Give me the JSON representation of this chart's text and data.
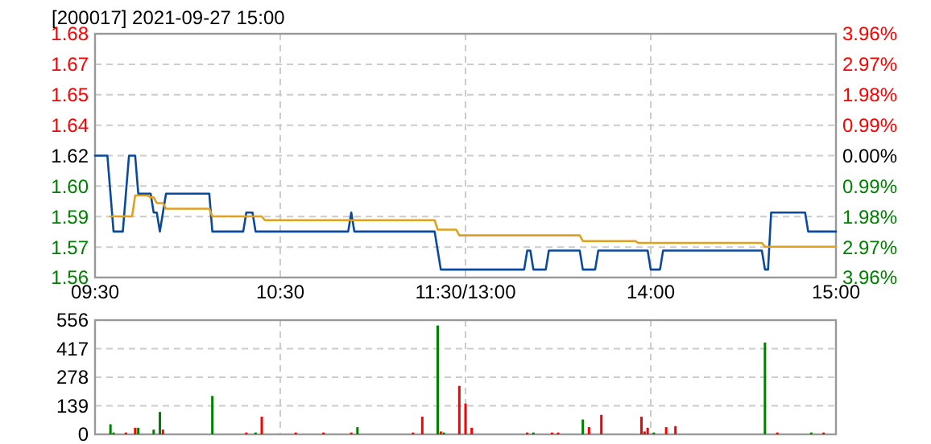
{
  "chart_data": [
    {
      "type": "line",
      "title": "[200017] 2021-09-27 15:00",
      "categories": [
        "09:30",
        null,
        null,
        null,
        null,
        null,
        null,
        null,
        null,
        null,
        null,
        null,
        null,
        null,
        null,
        null,
        null,
        null,
        null,
        null,
        null,
        null,
        null,
        null,
        null,
        null,
        null,
        null,
        null,
        null,
        null,
        null,
        null,
        null,
        null,
        null,
        null,
        null,
        null,
        null,
        null,
        null,
        null,
        null,
        null,
        null,
        null,
        null,
        null,
        null,
        null,
        null,
        null,
        null,
        null,
        null,
        null,
        null,
        null,
        null,
        "10:30",
        null,
        null,
        null,
        null,
        null,
        null,
        null,
        null,
        null,
        null,
        null,
        null,
        null,
        null,
        null,
        null,
        null,
        null,
        null,
        null,
        null,
        null,
        null,
        null,
        null,
        null,
        null,
        null,
        null,
        null,
        null,
        null,
        null,
        null,
        null,
        null,
        null,
        null,
        null,
        null,
        null,
        null,
        null,
        null,
        null,
        null,
        null,
        null,
        null,
        null,
        null,
        null,
        null,
        null,
        null,
        null,
        null,
        null,
        null,
        "11:30/13:00",
        null,
        null,
        null,
        null,
        null,
        null,
        null,
        null,
        null,
        null,
        null,
        null,
        null,
        null,
        null,
        null,
        null,
        null,
        null,
        null,
        null,
        null,
        null,
        null,
        null,
        null,
        null,
        null,
        null,
        null,
        null,
        null,
        null,
        null,
        null,
        null,
        null,
        null,
        null,
        null,
        null,
        null,
        null,
        null,
        null,
        null,
        null,
        null,
        null,
        null,
        null,
        null,
        null,
        null,
        null,
        null,
        null,
        null,
        null,
        "14:00",
        null,
        null,
        null,
        null,
        null,
        null,
        null,
        null,
        null,
        null,
        null,
        null,
        null,
        null,
        null,
        null,
        null,
        null,
        null,
        null,
        null,
        null,
        null,
        null,
        null,
        null,
        null,
        null,
        null,
        null,
        null,
        null,
        null,
        null,
        null,
        null,
        null,
        null,
        null,
        null,
        null,
        null,
        null,
        null,
        null,
        null,
        null,
        null,
        null,
        null,
        null,
        null,
        null,
        null,
        null,
        null,
        null,
        null,
        null,
        "15:00"
      ],
      "ylim": [
        1.5558,
        1.6842
      ],
      "yticks": [
        {
          "value": 1.5558,
          "label": "1.56"
        },
        {
          "value": 1.5718,
          "label": "1.57"
        },
        {
          "value": 1.5879,
          "label": "1.59"
        },
        {
          "value": 1.604,
          "label": "1.60"
        },
        {
          "value": 1.62,
          "label": "1.62"
        },
        {
          "value": 1.636,
          "label": "1.64"
        },
        {
          "value": 1.6521,
          "label": "1.65"
        },
        {
          "value": 1.6681,
          "label": "1.67"
        },
        {
          "value": 1.6842,
          "label": "1.68"
        }
      ],
      "y2lim": [
        -3.96,
        3.96
      ],
      "y2ticks": [
        {
          "value": -3.96,
          "label": "3.96%"
        },
        {
          "value": -2.97,
          "label": "2.97%"
        },
        {
          "value": -1.98,
          "label": "1.98%"
        },
        {
          "value": -0.99,
          "label": "0.99%"
        },
        {
          "value": 0,
          "label": "0.00%"
        },
        {
          "value": 0.99,
          "label": "0.99%"
        },
        {
          "value": 1.98,
          "label": "1.98%"
        },
        {
          "value": 2.97,
          "label": "2.97%"
        },
        {
          "value": 3.96,
          "label": "3.96%"
        }
      ],
      "grid": true,
      "series": [
        {
          "color": "#0a4a9e",
          "values": [
            1.62,
            1.62,
            1.62,
            1.62,
            1.62,
            1.6,
            1.58,
            1.58,
            1.58,
            1.58,
            1.6,
            1.62,
            1.62,
            1.62,
            1.6,
            1.6,
            1.6,
            1.6,
            1.6,
            1.59,
            1.59,
            1.58,
            1.59,
            1.6,
            1.6,
            1.6,
            1.6,
            1.6,
            1.6,
            1.6,
            1.6,
            1.6,
            1.6,
            1.6,
            1.6,
            1.6,
            1.6,
            1.6,
            1.58,
            1.58,
            1.58,
            1.58,
            1.58,
            1.58,
            1.58,
            1.58,
            1.58,
            1.58,
            1.58,
            1.59,
            1.59,
            1.59,
            1.58,
            1.58,
            1.58,
            1.58,
            1.58,
            1.58,
            1.58,
            1.58,
            1.58,
            1.58,
            1.58,
            1.58,
            1.58,
            1.58,
            1.58,
            1.58,
            1.58,
            1.58,
            1.58,
            1.58,
            1.58,
            1.58,
            1.58,
            1.58,
            1.58,
            1.58,
            1.58,
            1.58,
            1.58,
            1.58,
            1.58,
            1.59,
            1.58,
            1.58,
            1.58,
            1.58,
            1.58,
            1.58,
            1.58,
            1.58,
            1.58,
            1.58,
            1.58,
            1.58,
            1.58,
            1.58,
            1.58,
            1.58,
            1.58,
            1.58,
            1.58,
            1.58,
            1.58,
            1.58,
            1.58,
            1.58,
            1.58,
            1.58,
            1.58,
            1.57,
            1.56,
            1.56,
            1.56,
            1.56,
            1.56,
            1.56,
            1.56,
            1.56,
            1.56,
            1.56,
            1.56,
            1.56,
            1.56,
            1.56,
            1.56,
            1.56,
            1.56,
            1.56,
            1.56,
            1.56,
            1.56,
            1.56,
            1.56,
            1.56,
            1.56,
            1.56,
            1.56,
            1.56,
            1.57,
            1.57,
            1.56,
            1.56,
            1.56,
            1.56,
            1.56,
            1.57,
            1.57,
            1.57,
            1.57,
            1.57,
            1.57,
            1.57,
            1.57,
            1.57,
            1.57,
            1.57,
            1.56,
            1.56,
            1.56,
            1.56,
            1.56,
            1.57,
            1.57,
            1.57,
            1.57,
            1.57,
            1.57,
            1.57,
            1.57,
            1.57,
            1.57,
            1.57,
            1.57,
            1.57,
            1.57,
            1.57,
            1.57,
            1.57,
            1.56,
            1.56,
            1.56,
            1.56,
            1.57,
            1.57,
            1.57,
            1.57,
            1.57,
            1.57,
            1.57,
            1.57,
            1.57,
            1.57,
            1.57,
            1.57,
            1.57,
            1.57,
            1.57,
            1.57,
            1.57,
            1.57,
            1.57,
            1.57,
            1.57,
            1.57,
            1.57,
            1.57,
            1.57,
            1.57,
            1.57,
            1.57,
            1.57,
            1.57,
            1.57,
            1.57,
            1.57,
            1.56,
            1.56,
            1.59,
            1.59,
            1.59,
            1.59,
            1.59,
            1.59,
            1.59,
            1.59,
            1.59,
            1.59,
            1.59,
            1.59,
            1.58,
            1.58,
            1.58,
            1.58,
            1.58,
            1.58,
            1.58,
            1.58,
            1.58,
            1.58
          ]
        },
        {
          "color": "#e0a020",
          "values": [
            null,
            null,
            null,
            null,
            null,
            1.588,
            1.588,
            1.588,
            1.588,
            1.588,
            1.588,
            1.588,
            1.588,
            1.599,
            1.599,
            1.599,
            1.599,
            1.599,
            1.598,
            1.598,
            1.595,
            1.595,
            1.595,
            1.592,
            1.592,
            1.592,
            1.592,
            1.592,
            1.592,
            1.592,
            1.592,
            1.592,
            1.592,
            1.592,
            1.592,
            1.592,
            1.592,
            1.592,
            1.588,
            1.588,
            1.588,
            1.588,
            1.588,
            1.588,
            1.588,
            1.588,
            1.588,
            1.588,
            1.588,
            1.588,
            1.588,
            1.588,
            1.588,
            1.588,
            1.588,
            1.586,
            1.586,
            1.586,
            1.586,
            1.586,
            1.586,
            1.586,
            1.586,
            1.586,
            1.586,
            1.586,
            1.586,
            1.586,
            1.586,
            1.586,
            1.586,
            1.586,
            1.586,
            1.586,
            1.586,
            1.586,
            1.586,
            1.586,
            1.586,
            1.586,
            1.586,
            1.586,
            1.586,
            1.586,
            1.586,
            1.586,
            1.586,
            1.586,
            1.586,
            1.586,
            1.586,
            1.586,
            1.586,
            1.586,
            1.586,
            1.586,
            1.586,
            1.586,
            1.586,
            1.586,
            1.586,
            1.586,
            1.586,
            1.586,
            1.586,
            1.586,
            1.586,
            1.586,
            1.586,
            1.586,
            1.586,
            1.581,
            1.581,
            1.581,
            1.581,
            1.581,
            1.581,
            1.581,
            1.578,
            1.578,
            1.578,
            1.578,
            1.578,
            1.578,
            1.578,
            1.578,
            1.578,
            1.578,
            1.578,
            1.578,
            1.578,
            1.578,
            1.578,
            1.578,
            1.578,
            1.578,
            1.578,
            1.578,
            1.578,
            1.578,
            1.578,
            1.578,
            1.578,
            1.578,
            1.578,
            1.578,
            1.578,
            1.578,
            1.578,
            1.578,
            1.578,
            1.578,
            1.578,
            1.578,
            1.578,
            1.578,
            1.578,
            1.578,
            1.575,
            1.575,
            1.575,
            1.575,
            1.575,
            1.575,
            1.575,
            1.575,
            1.575,
            1.575,
            1.575,
            1.575,
            1.575,
            1.575,
            1.575,
            1.575,
            1.575,
            1.575,
            1.574,
            1.574,
            1.574,
            1.574,
            1.574,
            1.574,
            1.574,
            1.574,
            1.574,
            1.574,
            1.574,
            1.574,
            1.574,
            1.574,
            1.574,
            1.574,
            1.574,
            1.574,
            1.574,
            1.574,
            1.574,
            1.574,
            1.574,
            1.574,
            1.574,
            1.574,
            1.574,
            1.574,
            1.574,
            1.574,
            1.574,
            1.574,
            1.574,
            1.574,
            1.574,
            1.574,
            1.574,
            1.574,
            1.574,
            1.574,
            1.574,
            1.572,
            1.572,
            1.572,
            1.572,
            1.572,
            1.572,
            1.572,
            1.572,
            1.572,
            1.572,
            1.572,
            1.572,
            1.572,
            1.572,
            1.572,
            1.572,
            1.572,
            1.572,
            1.572,
            1.572,
            1.572,
            1.572,
            1.572,
            1.572
          ]
        }
      ]
    },
    {
      "type": "bar",
      "categories": [
        null,
        null,
        null,
        null,
        null,
        null,
        null,
        null,
        null,
        null,
        null,
        null,
        null,
        null,
        null,
        null,
        null,
        null,
        null,
        null,
        null,
        null,
        null,
        null,
        null,
        null,
        null,
        null,
        null,
        null,
        null,
        null,
        null,
        null,
        null,
        null,
        null,
        null,
        null,
        null,
        null,
        null,
        null,
        null,
        null,
        null,
        null,
        null,
        null,
        null,
        null,
        null,
        null,
        null,
        null,
        null,
        null,
        null,
        null,
        null,
        null,
        null,
        null,
        null,
        null,
        null,
        null,
        null,
        null,
        null,
        null,
        null,
        null,
        null,
        null,
        null,
        null,
        null,
        null,
        null,
        null,
        null,
        null,
        null,
        null,
        null,
        null,
        null,
        null,
        null,
        null,
        null,
        null,
        null,
        null,
        null,
        null,
        null,
        null,
        null,
        null,
        null,
        null,
        null,
        null,
        null,
        null,
        null,
        null,
        null,
        null,
        null,
        null,
        null,
        null,
        null,
        null,
        null,
        null,
        null,
        null,
        null,
        null,
        null,
        null,
        null,
        null,
        null,
        null,
        null,
        null,
        null,
        null,
        null,
        null,
        null,
        null,
        null,
        null,
        null,
        null,
        null,
        null,
        null,
        null,
        null,
        null,
        null,
        null,
        null,
        null,
        null,
        null,
        null,
        null,
        null,
        null,
        null,
        null,
        null,
        null,
        null,
        null,
        null,
        null,
        null,
        null,
        null,
        null,
        null,
        null,
        null,
        null,
        null,
        null,
        null,
        null,
        null,
        null,
        null,
        null,
        null,
        null,
        null,
        null,
        null,
        null,
        null,
        null,
        null,
        null,
        null,
        null,
        null,
        null,
        null,
        null,
        null,
        null,
        null,
        null,
        null,
        null,
        null,
        null,
        null,
        null,
        null,
        null,
        null,
        null,
        null,
        null,
        null,
        null,
        null,
        null,
        null,
        null,
        null,
        null,
        null,
        null,
        null,
        null,
        null,
        null,
        null,
        null,
        null,
        null,
        null,
        null,
        null,
        null,
        null,
        null,
        null,
        null,
        null,
        null
      ],
      "ylim": [
        0,
        556
      ],
      "yticks": [
        0,
        139,
        278,
        417,
        556
      ],
      "tick_labels": "y",
      "grid": true,
      "series": [
        {
          "color": "#ff0000",
          "values": [
            null,
            null,
            null,
            null,
            null,
            null,
            null,
            null,
            null,
            null,
            9,
            null,
            null,
            32,
            null,
            null,
            null,
            null,
            null,
            null,
            null,
            null,
            23,
            null,
            null,
            null,
            null,
            null,
            null,
            null,
            null,
            null,
            null,
            null,
            null,
            null,
            null,
            null,
            null,
            null,
            null,
            null,
            null,
            null,
            null,
            null,
            null,
            null,
            null,
            9,
            null,
            null,
            null,
            null,
            86,
            null,
            null,
            null,
            null,
            null,
            null,
            null,
            null,
            null,
            null,
            9,
            null,
            null,
            null,
            null,
            null,
            null,
            null,
            null,
            9,
            null,
            null,
            null,
            null,
            null,
            null,
            null,
            null,
            9,
            null,
            null,
            null,
            null,
            null,
            null,
            null,
            null,
            null,
            null,
            null,
            null,
            null,
            null,
            null,
            null,
            null,
            null,
            null,
            9,
            null,
            null,
            86,
            null,
            null,
            null,
            null,
            null,
            14,
            null,
            null,
            null,
            null,
            null,
            236,
            null,
            150,
            null,
            32,
            null,
            null,
            null,
            null,
            null,
            null,
            null,
            null,
            null,
            null,
            null,
            null,
            null,
            null,
            null,
            null,
            null,
            9,
            null,
            null,
            null,
            null,
            null,
            null,
            null,
            9,
            null,
            9,
            null,
            null,
            null,
            null,
            null,
            null,
            null,
            null,
            null,
            35,
            null,
            null,
            null,
            95,
            null,
            null,
            null,
            null,
            null,
            null,
            null,
            null,
            null,
            null,
            null,
            null,
            86,
            14,
            32,
            null,
            null,
            null,
            null,
            null,
            35,
            null,
            null,
            40,
            null,
            null,
            null,
            null,
            null,
            null,
            null,
            null,
            null,
            null,
            null,
            null,
            null,
            null,
            null,
            null,
            null,
            null,
            null,
            null,
            null,
            null,
            null,
            null,
            null,
            null,
            null,
            null,
            null,
            null,
            null,
            null,
            9,
            null,
            null,
            null,
            null,
            null,
            null,
            null,
            null,
            null,
            null,
            null,
            null,
            null,
            null,
            9,
            null,
            null,
            null,
            null
          ]
        },
        {
          "color": "#008000",
          "values": [
            null,
            null,
            null,
            null,
            null,
            49,
            9,
            null,
            null,
            null,
            null,
            null,
            null,
            null,
            32,
            null,
            null,
            null,
            null,
            23,
            null,
            109,
            null,
            null,
            null,
            null,
            null,
            null,
            null,
            null,
            null,
            null,
            null,
            null,
            null,
            null,
            null,
            null,
            187,
            null,
            null,
            null,
            null,
            null,
            null,
            null,
            null,
            null,
            null,
            null,
            null,
            null,
            9,
            null,
            null,
            null,
            null,
            null,
            null,
            null,
            null,
            null,
            null,
            null,
            null,
            null,
            null,
            null,
            null,
            null,
            null,
            null,
            null,
            null,
            null,
            null,
            null,
            null,
            null,
            null,
            null,
            null,
            null,
            null,
            null,
            35,
            null,
            null,
            null,
            null,
            null,
            null,
            null,
            null,
            null,
            null,
            null,
            null,
            null,
            null,
            null,
            null,
            null,
            null,
            null,
            null,
            null,
            null,
            null,
            null,
            null,
            530,
            null,
            9,
            null,
            null,
            null,
            null,
            null,
            null,
            null,
            null,
            null,
            null,
            null,
            null,
            null,
            null,
            null,
            null,
            null,
            null,
            null,
            null,
            null,
            null,
            null,
            null,
            null,
            null,
            null,
            null,
            9,
            null,
            null,
            null,
            null,
            null,
            null,
            null,
            null,
            null,
            null,
            null,
            null,
            null,
            null,
            null,
            72,
            null,
            null,
            null,
            null,
            null,
            null,
            null,
            null,
            null,
            null,
            null,
            null,
            null,
            null,
            null,
            null,
            null,
            null,
            null,
            null,
            null,
            null,
            9,
            null,
            null,
            null,
            null,
            null,
            null,
            null,
            null,
            null,
            null,
            null,
            null,
            null,
            null,
            null,
            null,
            null,
            null,
            null,
            null,
            null,
            null,
            null,
            null,
            null,
            null,
            null,
            null,
            null,
            null,
            null,
            null,
            null,
            null,
            null,
            447,
            null,
            null,
            null,
            null,
            null,
            null,
            null,
            null,
            null,
            null,
            null,
            null,
            null,
            null,
            9,
            null,
            null,
            null,
            null,
            null,
            null,
            null,
            null
          ]
        }
      ]
    }
  ]
}
